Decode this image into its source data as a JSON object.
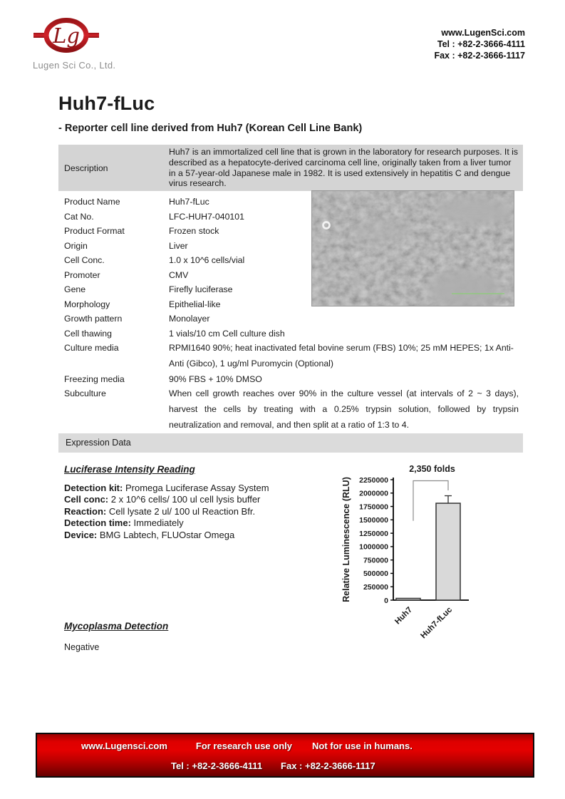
{
  "header": {
    "logo": {
      "monogram": "Lg",
      "company": "Lugen Sci Co., Ltd.",
      "red_color": "#c0181c"
    },
    "contact": {
      "website": "www.LugenSci.com",
      "tel": "Tel : +82-2-3666-4111",
      "fax": "Fax : +82-2-3666-1117"
    }
  },
  "title": "Huh7-fLuc",
  "subtitle": "- Reporter cell line derived from Huh7 (Korean Cell Line Bank)",
  "info_table": {
    "description_label": "Description",
    "description_text": "Huh7 is an immortalized cell line that is grown in the laboratory for research purposes. It is described as a hepatocyte-derived carcinoma cell line, originally taken from a liver tumor in a 57-year-old Japanese male in 1982. It is used extensively in hepatitis C and dengue virus research.",
    "rows": [
      {
        "label": "Product Name",
        "value": "Huh7-fLuc"
      },
      {
        "label": "Cat No.",
        "value": "LFC-HUH7-040101"
      },
      {
        "label": "Product Format",
        "value": "Frozen stock"
      },
      {
        "label": "Origin",
        "value": "Liver"
      },
      {
        "label": "Cell Conc.",
        "value": "1.0 x 10^6 cells/vial"
      },
      {
        "label": "Promoter",
        "value": "CMV"
      },
      {
        "label": "Gene",
        "value": "Firefly luciferase"
      },
      {
        "label": "Morphology",
        "value": "Epithelial-like"
      },
      {
        "label": "Growth pattern",
        "value": "Monolayer"
      },
      {
        "label": "Cell thawing",
        "value": "1 vials/10 cm Cell culture dish"
      },
      {
        "label": "Culture media",
        "value": "RPMI1640 90%; heat inactivated fetal bovine serum (FBS) 10%; 25 mM HEPES; 1x Anti-Anti (Gibco), 1 ug/ml Puromycin (Optional)"
      },
      {
        "label": "Freezing media",
        "value": "90% FBS + 10% DMSO"
      },
      {
        "label": "Subculture",
        "value": "When cell growth reaches over 90% in the culture vessel (at intervals of 2 ~ 3 days), harvest the cells by treating with a 0.25% trypsin solution, followed by trypsin neutralization and removal, and then split at a ratio of 1:3 to 4."
      }
    ]
  },
  "micrograph": {
    "scalebar_color": "#90c97f",
    "background_color": "#ababab"
  },
  "expression_section": {
    "header": "Expression Data"
  },
  "luciferase": {
    "heading": "Luciferase Intensity Reading",
    "details": [
      {
        "label": "Detection kit",
        "value": "Promega Luciferase Assay System"
      },
      {
        "label": "Cell conc",
        "value": "2 x 10^6 cells/ 100 ul cell lysis buffer"
      },
      {
        "label": "Reaction",
        "value": "Cell lysate 2 ul/ 100 ul Reaction Bfr."
      },
      {
        "label": "Detection time",
        "value": "Immediately"
      },
      {
        "label": "Device",
        "value": "BMG Labtech, FLUOstar Omega"
      }
    ]
  },
  "chart_data": {
    "type": "bar",
    "categories": [
      "Huh7",
      "Huh7-fLuc"
    ],
    "values": [
      770,
      1810000
    ],
    "errors_up": [
      0,
      140000
    ],
    "annotation": "2,350 folds",
    "ylabel": "Relative Luminescence (RLU)",
    "ylim": [
      0,
      2250000
    ],
    "ytick_step": 250000,
    "grid": false,
    "bar_color": "#d9d9d9",
    "bar_border": "#333333"
  },
  "mycoplasma": {
    "heading": "Mycoplasma Detection",
    "result": "Negative"
  },
  "footer": {
    "bg_color": "#c00000",
    "line1": [
      "www.Lugensci.com",
      "For research use only",
      "Not for use in humans."
    ],
    "line2": [
      "Tel : +82-2-3666-4111",
      "Fax : +82-2-3666-1117"
    ]
  }
}
